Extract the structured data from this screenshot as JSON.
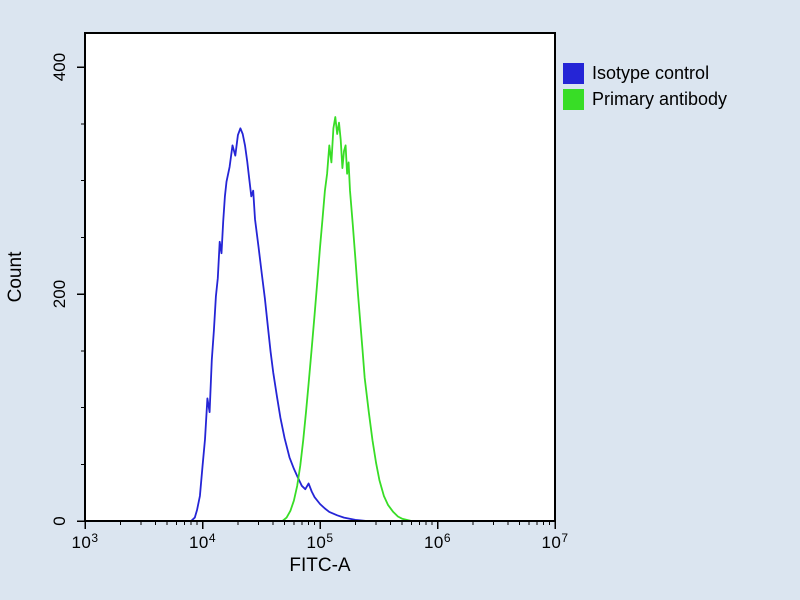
{
  "figure": {
    "background_color": "#dbe5f0",
    "plot_background": "#ffffff",
    "axis_color": "#000000",
    "text_color": "#000000"
  },
  "legend": {
    "items": [
      {
        "label": "Isotype control",
        "color": "#2525d6"
      },
      {
        "label": "Primary antibody",
        "color": "#38dd26"
      }
    ]
  },
  "chart_data": {
    "type": "line",
    "subtype": "flow-cytometry-histogram",
    "title": "",
    "xlabel": "FITC-A",
    "ylabel": "Count",
    "x_scale": "log10",
    "xlog_range": [
      3,
      7
    ],
    "ylim": [
      0,
      430
    ],
    "grid": false,
    "legend_position": "top-right-outside",
    "x_ticks": [
      {
        "value": 1000,
        "base": "10",
        "exp": "3"
      },
      {
        "value": 10000,
        "base": "10",
        "exp": "4"
      },
      {
        "value": 100000,
        "base": "10",
        "exp": "5"
      },
      {
        "value": 1000000,
        "base": "10",
        "exp": "6"
      },
      {
        "value": 10000000,
        "base": "10",
        "exp": "7"
      }
    ],
    "y_ticks": [
      {
        "value": 0,
        "label": "0"
      },
      {
        "value": 200,
        "label": "200"
      },
      {
        "value": 400,
        "label": "400"
      }
    ],
    "y_minor_ticks": [
      50,
      100,
      150,
      250,
      300,
      350
    ],
    "series": [
      {
        "name": "Isotype control",
        "color": "#2525d6",
        "peak": {
          "x": 21000,
          "y": 346
        },
        "points": [
          [
            8000,
            0
          ],
          [
            8600,
            3
          ],
          [
            9000,
            10
          ],
          [
            9500,
            22
          ],
          [
            10000,
            48
          ],
          [
            10500,
            72
          ],
          [
            11000,
            108
          ],
          [
            11500,
            96
          ],
          [
            12000,
            142
          ],
          [
            12500,
            168
          ],
          [
            13000,
            198
          ],
          [
            13500,
            214
          ],
          [
            14000,
            246
          ],
          [
            14500,
            236
          ],
          [
            15000,
            264
          ],
          [
            15500,
            286
          ],
          [
            16000,
            299
          ],
          [
            17000,
            312
          ],
          [
            18000,
            331
          ],
          [
            19000,
            322
          ],
          [
            20000,
            340
          ],
          [
            21000,
            346
          ],
          [
            22000,
            341
          ],
          [
            23000,
            331
          ],
          [
            24000,
            317
          ],
          [
            25000,
            301
          ],
          [
            26000,
            286
          ],
          [
            27000,
            291
          ],
          [
            28000,
            266
          ],
          [
            30000,
            241
          ],
          [
            32000,
            217
          ],
          [
            34000,
            196
          ],
          [
            36000,
            171
          ],
          [
            38000,
            149
          ],
          [
            40000,
            131
          ],
          [
            43000,
            110
          ],
          [
            46000,
            91
          ],
          [
            50000,
            73
          ],
          [
            55000,
            56
          ],
          [
            60000,
            46
          ],
          [
            65000,
            38
          ],
          [
            70000,
            31
          ],
          [
            75000,
            28
          ],
          [
            80000,
            33
          ],
          [
            85000,
            26
          ],
          [
            90000,
            21
          ],
          [
            100000,
            15
          ],
          [
            110000,
            11
          ],
          [
            120000,
            8
          ],
          [
            140000,
            5
          ],
          [
            160000,
            3
          ],
          [
            200000,
            1
          ],
          [
            250000,
            0
          ]
        ]
      },
      {
        "name": "Primary antibody",
        "color": "#38dd26",
        "peak": {
          "x": 135000,
          "y": 356
        },
        "points": [
          [
            48000,
            0
          ],
          [
            52000,
            3
          ],
          [
            56000,
            9
          ],
          [
            60000,
            18
          ],
          [
            64000,
            31
          ],
          [
            68000,
            49
          ],
          [
            72000,
            71
          ],
          [
            76000,
            96
          ],
          [
            80000,
            121
          ],
          [
            85000,
            152
          ],
          [
            90000,
            182
          ],
          [
            95000,
            212
          ],
          [
            100000,
            241
          ],
          [
            105000,
            266
          ],
          [
            110000,
            291
          ],
          [
            115000,
            306
          ],
          [
            120000,
            331
          ],
          [
            125000,
            316
          ],
          [
            130000,
            346
          ],
          [
            135000,
            356
          ],
          [
            140000,
            341
          ],
          [
            145000,
            351
          ],
          [
            150000,
            336
          ],
          [
            155000,
            311
          ],
          [
            160000,
            326
          ],
          [
            165000,
            331
          ],
          [
            170000,
            306
          ],
          [
            175000,
            316
          ],
          [
            180000,
            291
          ],
          [
            190000,
            261
          ],
          [
            200000,
            231
          ],
          [
            210000,
            201
          ],
          [
            220000,
            176
          ],
          [
            230000,
            151
          ],
          [
            240000,
            126
          ],
          [
            260000,
            96
          ],
          [
            280000,
            71
          ],
          [
            300000,
            51
          ],
          [
            320000,
            36
          ],
          [
            350000,
            22
          ],
          [
            380000,
            14
          ],
          [
            420000,
            8
          ],
          [
            460000,
            4
          ],
          [
            500000,
            2
          ],
          [
            600000,
            0
          ]
        ]
      }
    ]
  }
}
